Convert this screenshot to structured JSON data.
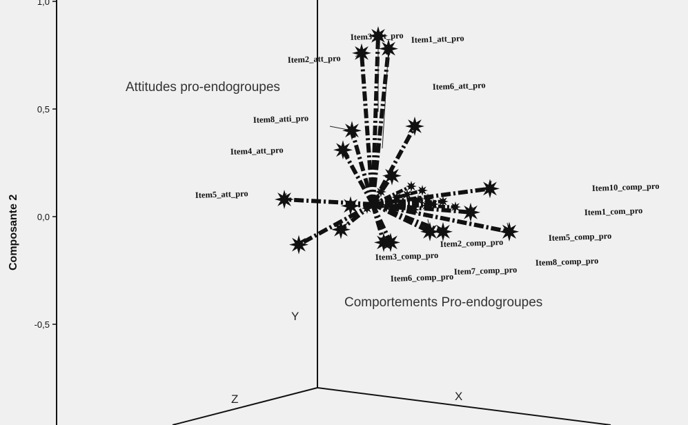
{
  "chart_data": {
    "type": "scatter",
    "subtype": "3d-loading-plot",
    "ylabel": "Composante 2",
    "yticks": [
      "1,0",
      "0,5",
      "0,0",
      "-0,5"
    ],
    "axis_letters": {
      "x": "X",
      "y": "Y",
      "z": "Z"
    },
    "annotations": [
      "Attitudes pro-endogroupes",
      "Comportements Pro-endogroupes"
    ],
    "background": "#f0f0f0",
    "marker_color": "#111111",
    "points": [
      {
        "label": "Item3_att_pro",
        "y": 0.84
      },
      {
        "label": "Item1_att_pro",
        "y": 0.78
      },
      {
        "label": "Item2_att_pro",
        "y": 0.76
      },
      {
        "label": "Item6_att_pro",
        "y": 0.42
      },
      {
        "label": "Item8_atti_pro",
        "y": 0.4
      },
      {
        "label": "",
        "y": 0.31
      },
      {
        "label": "Item4_att_pro",
        "y": 0.08
      },
      {
        "label": "Item5_att_pro",
        "y": -0.13
      },
      {
        "label": "",
        "y": -0.06
      },
      {
        "label": "",
        "y": 0.05
      },
      {
        "label": "",
        "y": 0.19
      },
      {
        "label": "Item10_comp_pro",
        "y": 0.13
      },
      {
        "label": "Item1_com_pro",
        "y": 0.02
      },
      {
        "label": "Item5_comp_pro",
        "y": -0.07
      },
      {
        "label": "Item8_comp_pro",
        "y": -0.07
      },
      {
        "label": "Item2_comp_pro",
        "y": -0.07
      },
      {
        "label": "Item3_comp_pro",
        "y": -0.12
      },
      {
        "label": "Item6_comp_pro",
        "y": -0.12
      },
      {
        "label": "Item7_comp_pro",
        "y": -0.07
      }
    ]
  }
}
